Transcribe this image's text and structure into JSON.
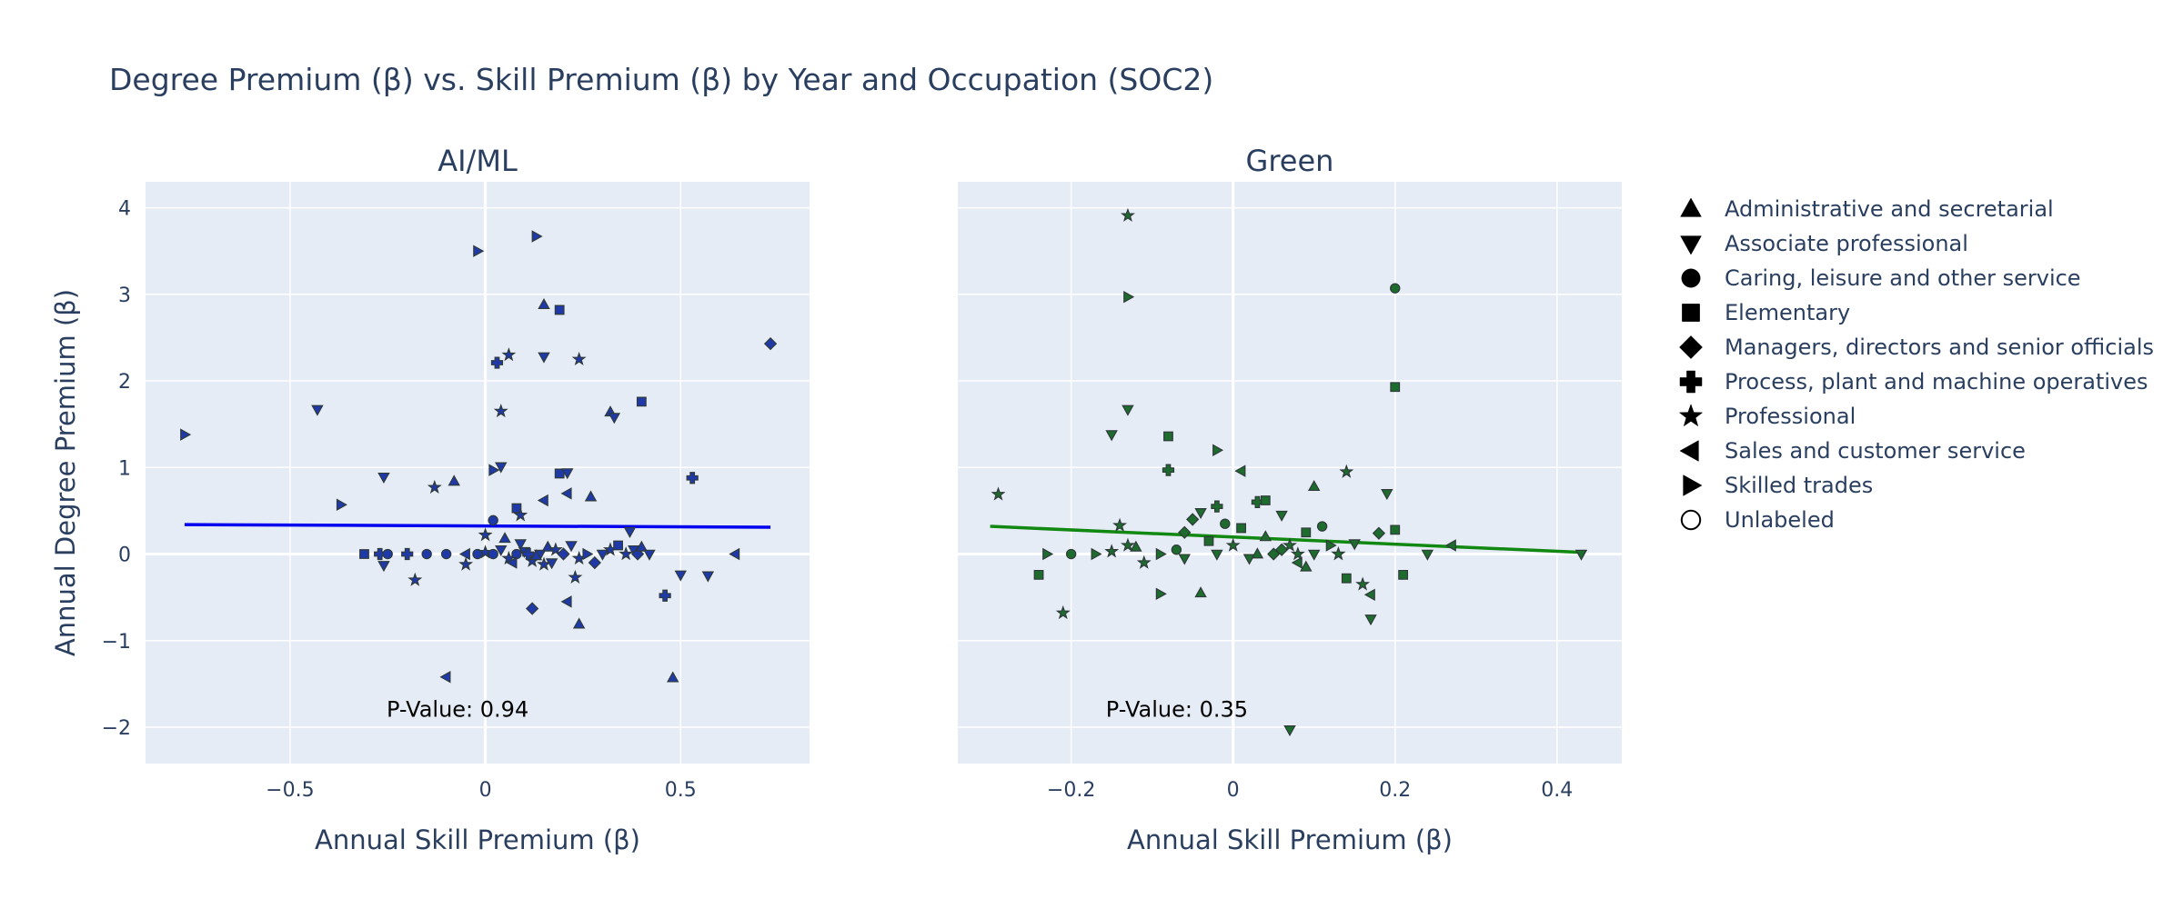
{
  "title": "Degree Premium (β) vs. Skill Premium (β) by Year and Occupation (SOC2)",
  "legend": [
    {
      "label": "Administrative and secretarial",
      "symbol": "triangle-up"
    },
    {
      "label": "Associate professional",
      "symbol": "triangle-down"
    },
    {
      "label": "Caring, leisure and other service",
      "symbol": "circle"
    },
    {
      "label": "Elementary",
      "symbol": "square"
    },
    {
      "label": "Managers, directors and senior officials",
      "symbol": "diamond"
    },
    {
      "label": "Process, plant and machine operatives",
      "symbol": "cross"
    },
    {
      "label": "Professional",
      "symbol": "star"
    },
    {
      "label": "Sales and customer service",
      "symbol": "triangle-left"
    },
    {
      "label": "Skilled trades",
      "symbol": "triangle-right"
    },
    {
      "label": "Unlabeled",
      "symbol": "circle-open"
    }
  ],
  "chart_data": [
    {
      "type": "scatter",
      "title": "AI/ML",
      "xlabel": "Annual Skill Premium (β)",
      "ylabel": "Annual Degree Premium (β)",
      "xlim": [
        -0.87,
        0.83
      ],
      "ylim": [
        -2.42,
        4.3
      ],
      "xticks": [
        -0.5,
        0,
        0.5
      ],
      "xtick_labels": [
        "−0.5",
        "0",
        "0.5"
      ],
      "yticks": [
        -2,
        -1,
        0,
        1,
        2,
        3,
        4
      ],
      "ytick_labels": [
        "−2",
        "−1",
        "0",
        "1",
        "2",
        "3",
        "4"
      ],
      "grid": true,
      "marker_color": "#1f3aa8",
      "trend_color": "#0000ee",
      "trendline": {
        "x": [
          -0.77,
          0.73
        ],
        "y": [
          0.34,
          0.31
        ]
      },
      "annotation": "P-Value: 0.94",
      "points": [
        {
          "x": -0.77,
          "y": 1.38,
          "cat": "triangle-right"
        },
        {
          "x": -0.43,
          "y": 1.67,
          "cat": "triangle-down"
        },
        {
          "x": -0.37,
          "y": 0.57,
          "cat": "triangle-right"
        },
        {
          "x": -0.26,
          "y": 0.89,
          "cat": "triangle-down"
        },
        {
          "x": -0.13,
          "y": 0.77,
          "cat": "star"
        },
        {
          "x": -0.08,
          "y": 0.84,
          "cat": "triangle-up"
        },
        {
          "x": -0.1,
          "y": -1.42,
          "cat": "triangle-left"
        },
        {
          "x": -0.02,
          "y": 3.5,
          "cat": "triangle-right"
        },
        {
          "x": 0.13,
          "y": 3.67,
          "cat": "triangle-right"
        },
        {
          "x": 0.15,
          "y": 2.88,
          "cat": "triangle-up"
        },
        {
          "x": 0.19,
          "y": 2.82,
          "cat": "square"
        },
        {
          "x": 0.03,
          "y": 2.21,
          "cat": "cross"
        },
        {
          "x": 0.06,
          "y": 2.3,
          "cat": "star"
        },
        {
          "x": 0.15,
          "y": 2.28,
          "cat": "triangle-down"
        },
        {
          "x": 0.24,
          "y": 2.25,
          "cat": "star"
        },
        {
          "x": 0.73,
          "y": 2.43,
          "cat": "diamond"
        },
        {
          "x": 0.4,
          "y": 1.76,
          "cat": "square"
        },
        {
          "x": 0.32,
          "y": 1.64,
          "cat": "triangle-up"
        },
        {
          "x": 0.33,
          "y": 1.58,
          "cat": "triangle-down"
        },
        {
          "x": 0.04,
          "y": 1.65,
          "cat": "star"
        },
        {
          "x": 0.53,
          "y": 0.88,
          "cat": "cross"
        },
        {
          "x": 0.02,
          "y": 0.97,
          "cat": "triangle-right"
        },
        {
          "x": 0.04,
          "y": 1.01,
          "cat": "triangle-down"
        },
        {
          "x": 0.19,
          "y": 0.93,
          "cat": "square"
        },
        {
          "x": 0.21,
          "y": 0.94,
          "cat": "triangle-down"
        },
        {
          "x": 0.08,
          "y": 0.53,
          "cat": "square"
        },
        {
          "x": 0.09,
          "y": 0.45,
          "cat": "star"
        },
        {
          "x": 0.21,
          "y": 0.7,
          "cat": "triangle-left"
        },
        {
          "x": 0.27,
          "y": 0.66,
          "cat": "triangle-up"
        },
        {
          "x": 0.15,
          "y": 0.62,
          "cat": "triangle-left"
        },
        {
          "x": 0.02,
          "y": 0.39,
          "cat": "circle"
        },
        {
          "x": 0.5,
          "y": -0.24,
          "cat": "triangle-down"
        },
        {
          "x": 0.57,
          "y": -0.25,
          "cat": "triangle-down"
        },
        {
          "x": 0.64,
          "y": 0.0,
          "cat": "triangle-left"
        },
        {
          "x": 0.46,
          "y": -0.48,
          "cat": "cross"
        },
        {
          "x": 0.48,
          "y": -1.43,
          "cat": "triangle-up"
        },
        {
          "x": 0.24,
          "y": -0.81,
          "cat": "triangle-up"
        },
        {
          "x": 0.12,
          "y": -0.63,
          "cat": "diamond"
        },
        {
          "x": 0.21,
          "y": -0.55,
          "cat": "triangle-left"
        },
        {
          "x": 0.23,
          "y": -0.27,
          "cat": "star"
        },
        {
          "x": -0.18,
          "y": -0.3,
          "cat": "star"
        },
        {
          "x": -0.26,
          "y": -0.13,
          "cat": "triangle-down"
        },
        {
          "x": -0.05,
          "y": -0.12,
          "cat": "star"
        },
        {
          "x": -0.31,
          "y": 0.0,
          "cat": "square"
        },
        {
          "x": -0.27,
          "y": 0.0,
          "cat": "cross"
        },
        {
          "x": -0.25,
          "y": 0.0,
          "cat": "circle"
        },
        {
          "x": -0.2,
          "y": 0.0,
          "cat": "cross"
        },
        {
          "x": -0.15,
          "y": 0.0,
          "cat": "circle"
        },
        {
          "x": -0.1,
          "y": 0.0,
          "cat": "circle"
        },
        {
          "x": -0.05,
          "y": 0.0,
          "cat": "triangle-left"
        },
        {
          "x": -0.02,
          "y": 0.0,
          "cat": "circle"
        },
        {
          "x": 0.0,
          "y": 0.02,
          "cat": "star"
        },
        {
          "x": 0.02,
          "y": 0.0,
          "cat": "circle"
        },
        {
          "x": 0.04,
          "y": 0.05,
          "cat": "triangle-down"
        },
        {
          "x": 0.06,
          "y": -0.05,
          "cat": "star"
        },
        {
          "x": 0.08,
          "y": 0.0,
          "cat": "circle"
        },
        {
          "x": 0.1,
          "y": 0.03,
          "cat": "triangle-down"
        },
        {
          "x": 0.12,
          "y": -0.08,
          "cat": "star"
        },
        {
          "x": 0.14,
          "y": 0.0,
          "cat": "triangle-down"
        },
        {
          "x": 0.16,
          "y": 0.08,
          "cat": "triangle-up"
        },
        {
          "x": 0.17,
          "y": -0.1,
          "cat": "triangle-down"
        },
        {
          "x": 0.18,
          "y": 0.05,
          "cat": "star"
        },
        {
          "x": 0.2,
          "y": 0.0,
          "cat": "diamond"
        },
        {
          "x": 0.22,
          "y": 0.1,
          "cat": "triangle-down"
        },
        {
          "x": 0.24,
          "y": -0.05,
          "cat": "star"
        },
        {
          "x": 0.26,
          "y": 0.0,
          "cat": "triangle-right"
        },
        {
          "x": 0.28,
          "y": -0.1,
          "cat": "diamond"
        },
        {
          "x": 0.3,
          "y": 0.0,
          "cat": "triangle-down"
        },
        {
          "x": 0.32,
          "y": 0.05,
          "cat": "star"
        },
        {
          "x": 0.34,
          "y": 0.1,
          "cat": "square"
        },
        {
          "x": 0.36,
          "y": 0.0,
          "cat": "star"
        },
        {
          "x": 0.38,
          "y": 0.05,
          "cat": "triangle-down"
        },
        {
          "x": 0.39,
          "y": 0.0,
          "cat": "diamond"
        },
        {
          "x": 0.4,
          "y": 0.08,
          "cat": "triangle-up"
        },
        {
          "x": 0.42,
          "y": 0.0,
          "cat": "triangle-down"
        },
        {
          "x": 0.37,
          "y": 0.26,
          "cat": "triangle-down"
        },
        {
          "x": 0.0,
          "y": 0.22,
          "cat": "star"
        },
        {
          "x": 0.05,
          "y": 0.18,
          "cat": "triangle-up"
        },
        {
          "x": 0.09,
          "y": 0.12,
          "cat": "triangle-down"
        },
        {
          "x": 0.13,
          "y": -0.02,
          "cat": "triangle-up"
        },
        {
          "x": 0.15,
          "y": -0.12,
          "cat": "star"
        },
        {
          "x": 0.07,
          "y": -0.1,
          "cat": "triangle-left"
        },
        {
          "x": 0.11,
          "y": 0.0,
          "cat": "cross"
        }
      ]
    },
    {
      "type": "scatter",
      "title": "Green",
      "xlabel": "Annual Skill Premium (β)",
      "ylabel": "",
      "xlim": [
        -0.34,
        0.48
      ],
      "ylim": [
        -2.42,
        4.3
      ],
      "xticks": [
        -0.2,
        0,
        0.2,
        0.4
      ],
      "xtick_labels": [
        "−0.2",
        "0",
        "0.2",
        "0.4"
      ],
      "yticks": [
        -2,
        -1,
        0,
        1,
        2,
        3,
        4
      ],
      "grid": true,
      "marker_color": "#1e6b2e",
      "trend_color": "#118811",
      "trendline": {
        "x": [
          -0.3,
          0.43
        ],
        "y": [
          0.32,
          0.02
        ]
      },
      "annotation": "P-Value: 0.35",
      "points": [
        {
          "x": -0.13,
          "y": 3.91,
          "cat": "star"
        },
        {
          "x": -0.13,
          "y": 2.97,
          "cat": "triangle-right"
        },
        {
          "x": 0.2,
          "y": 3.07,
          "cat": "circle"
        },
        {
          "x": 0.2,
          "y": 1.93,
          "cat": "square"
        },
        {
          "x": -0.13,
          "y": 1.67,
          "cat": "triangle-down"
        },
        {
          "x": -0.15,
          "y": 1.38,
          "cat": "triangle-down"
        },
        {
          "x": -0.08,
          "y": 1.36,
          "cat": "square"
        },
        {
          "x": -0.02,
          "y": 1.2,
          "cat": "triangle-right"
        },
        {
          "x": -0.08,
          "y": 0.97,
          "cat": "cross"
        },
        {
          "x": 0.01,
          "y": 0.96,
          "cat": "triangle-left"
        },
        {
          "x": 0.1,
          "y": 0.78,
          "cat": "triangle-up"
        },
        {
          "x": 0.14,
          "y": 0.95,
          "cat": "star"
        },
        {
          "x": 0.19,
          "y": 0.7,
          "cat": "triangle-down"
        },
        {
          "x": -0.29,
          "y": 0.69,
          "cat": "star"
        },
        {
          "x": -0.14,
          "y": 0.33,
          "cat": "star"
        },
        {
          "x": -0.24,
          "y": -0.24,
          "cat": "square"
        },
        {
          "x": -0.21,
          "y": -0.68,
          "cat": "star"
        },
        {
          "x": -0.09,
          "y": -0.46,
          "cat": "triangle-right"
        },
        {
          "x": -0.04,
          "y": -0.45,
          "cat": "triangle-up"
        },
        {
          "x": 0.07,
          "y": -2.03,
          "cat": "triangle-down"
        },
        {
          "x": 0.17,
          "y": -0.75,
          "cat": "triangle-down"
        },
        {
          "x": 0.17,
          "y": -0.47,
          "cat": "triangle-left"
        },
        {
          "x": 0.14,
          "y": -0.28,
          "cat": "square"
        },
        {
          "x": 0.21,
          "y": -0.24,
          "cat": "square"
        },
        {
          "x": 0.2,
          "y": 0.28,
          "cat": "square"
        },
        {
          "x": 0.18,
          "y": 0.24,
          "cat": "diamond"
        },
        {
          "x": 0.27,
          "y": 0.1,
          "cat": "triangle-left"
        },
        {
          "x": 0.24,
          "y": 0.0,
          "cat": "triangle-down"
        },
        {
          "x": 0.43,
          "y": 0.0,
          "cat": "triangle-down"
        },
        {
          "x": -0.23,
          "y": 0.0,
          "cat": "triangle-right"
        },
        {
          "x": -0.2,
          "y": 0.0,
          "cat": "circle"
        },
        {
          "x": -0.17,
          "y": 0.0,
          "cat": "triangle-right"
        },
        {
          "x": -0.15,
          "y": 0.03,
          "cat": "star"
        },
        {
          "x": -0.13,
          "y": 0.1,
          "cat": "star"
        },
        {
          "x": -0.11,
          "y": -0.1,
          "cat": "star"
        },
        {
          "x": -0.09,
          "y": 0.0,
          "cat": "triangle-right"
        },
        {
          "x": -0.07,
          "y": 0.05,
          "cat": "circle"
        },
        {
          "x": -0.06,
          "y": 0.25,
          "cat": "diamond"
        },
        {
          "x": -0.05,
          "y": 0.4,
          "cat": "diamond"
        },
        {
          "x": -0.04,
          "y": 0.48,
          "cat": "triangle-down"
        },
        {
          "x": -0.03,
          "y": 0.15,
          "cat": "square"
        },
        {
          "x": -0.02,
          "y": 0.0,
          "cat": "triangle-down"
        },
        {
          "x": -0.01,
          "y": 0.35,
          "cat": "circle"
        },
        {
          "x": 0.0,
          "y": 0.1,
          "cat": "star"
        },
        {
          "x": 0.01,
          "y": 0.3,
          "cat": "square"
        },
        {
          "x": 0.02,
          "y": -0.05,
          "cat": "triangle-down"
        },
        {
          "x": 0.03,
          "y": 0.6,
          "cat": "cross"
        },
        {
          "x": 0.04,
          "y": 0.2,
          "cat": "triangle-up"
        },
        {
          "x": 0.05,
          "y": 0.0,
          "cat": "diamond"
        },
        {
          "x": 0.06,
          "y": 0.45,
          "cat": "triangle-down"
        },
        {
          "x": 0.07,
          "y": 0.1,
          "cat": "star"
        },
        {
          "x": 0.08,
          "y": -0.1,
          "cat": "triangle-left"
        },
        {
          "x": 0.09,
          "y": 0.25,
          "cat": "square"
        },
        {
          "x": 0.1,
          "y": 0.0,
          "cat": "triangle-down"
        },
        {
          "x": 0.11,
          "y": 0.32,
          "cat": "circle"
        },
        {
          "x": 0.12,
          "y": 0.1,
          "cat": "triangle-right"
        },
        {
          "x": 0.13,
          "y": 0.0,
          "cat": "star"
        },
        {
          "x": 0.15,
          "y": 0.12,
          "cat": "triangle-down"
        },
        {
          "x": 0.16,
          "y": -0.35,
          "cat": "star"
        },
        {
          "x": -0.06,
          "y": -0.05,
          "cat": "triangle-down"
        },
        {
          "x": -0.02,
          "y": 0.55,
          "cat": "cross"
        },
        {
          "x": 0.03,
          "y": 0.0,
          "cat": "triangle-up"
        },
        {
          "x": 0.06,
          "y": 0.05,
          "cat": "diamond"
        },
        {
          "x": 0.09,
          "y": -0.15,
          "cat": "triangle-up"
        },
        {
          "x": -0.12,
          "y": 0.08,
          "cat": "triangle-up"
        },
        {
          "x": 0.04,
          "y": 0.62,
          "cat": "square"
        },
        {
          "x": 0.13,
          "y": 0.0,
          "cat": "star"
        },
        {
          "x": 0.08,
          "y": 0.0,
          "cat": "star"
        }
      ]
    }
  ]
}
